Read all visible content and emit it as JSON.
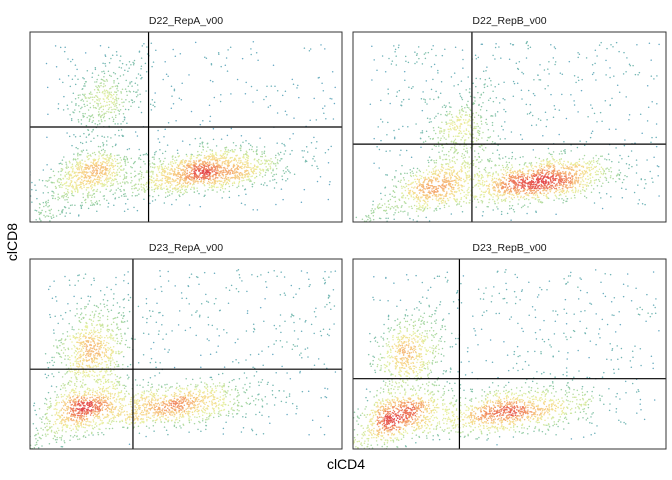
{
  "chart_data": {
    "type": "scatter",
    "style": "density-colored flow cytometry dot plot with quadrant gates",
    "xlabel": "clCD4",
    "ylabel": "clCD8",
    "grid": false,
    "legend": "none",
    "x_tick_labels": "none",
    "y_tick_labels": "none",
    "xlim": [
      0,
      1
    ],
    "ylim": [
      0,
      1
    ],
    "color_scale": [
      "#5e9fd2",
      "#74b8b0",
      "#a8d8a0",
      "#e8f0a0",
      "#f7d98c",
      "#f4a06a",
      "#e4474a"
    ],
    "facets": [
      {
        "title": "D22_RepA_v00",
        "gate_x": 0.38,
        "gate_y": 0.5,
        "populations": [
          {
            "name_hint": "CD4+",
            "cx": 0.57,
            "cy": 0.27,
            "weight": 0.52
          },
          {
            "name_hint": "double-negative",
            "cx": 0.19,
            "cy": 0.25,
            "weight": 0.24
          },
          {
            "name_hint": "CD8+",
            "cx": 0.24,
            "cy": 0.65,
            "weight": 0.13
          },
          {
            "name_hint": "background",
            "weight": 0.11
          }
        ]
      },
      {
        "title": "D22_RepB_v00",
        "gate_x": 0.38,
        "gate_y": 0.41,
        "populations": [
          {
            "name_hint": "CD4+",
            "cx": 0.6,
            "cy": 0.22,
            "weight": 0.48
          },
          {
            "name_hint": "double-negative",
            "cx": 0.27,
            "cy": 0.2,
            "weight": 0.22
          },
          {
            "name_hint": "CD8+",
            "cx": 0.35,
            "cy": 0.48,
            "weight": 0.12
          },
          {
            "name_hint": "background",
            "weight": 0.18
          }
        ]
      },
      {
        "title": "D23_RepA_v00",
        "gate_x": 0.33,
        "gate_y": 0.42,
        "populations": [
          {
            "name_hint": "CD4+",
            "cx": 0.47,
            "cy": 0.23,
            "weight": 0.33
          },
          {
            "name_hint": "double-negative",
            "cx": 0.18,
            "cy": 0.22,
            "weight": 0.26
          },
          {
            "name_hint": "CD8+",
            "cx": 0.2,
            "cy": 0.53,
            "weight": 0.23
          },
          {
            "name_hint": "background",
            "weight": 0.18
          }
        ]
      },
      {
        "title": "D23_RepB_v00",
        "gate_x": 0.34,
        "gate_y": 0.37,
        "populations": [
          {
            "name_hint": "CD4+",
            "cx": 0.51,
            "cy": 0.2,
            "weight": 0.37
          },
          {
            "name_hint": "double-negative",
            "cx": 0.15,
            "cy": 0.18,
            "weight": 0.27
          },
          {
            "name_hint": "CD8+",
            "cx": 0.18,
            "cy": 0.5,
            "weight": 0.2
          },
          {
            "name_hint": "background",
            "weight": 0.16
          }
        ]
      }
    ]
  }
}
